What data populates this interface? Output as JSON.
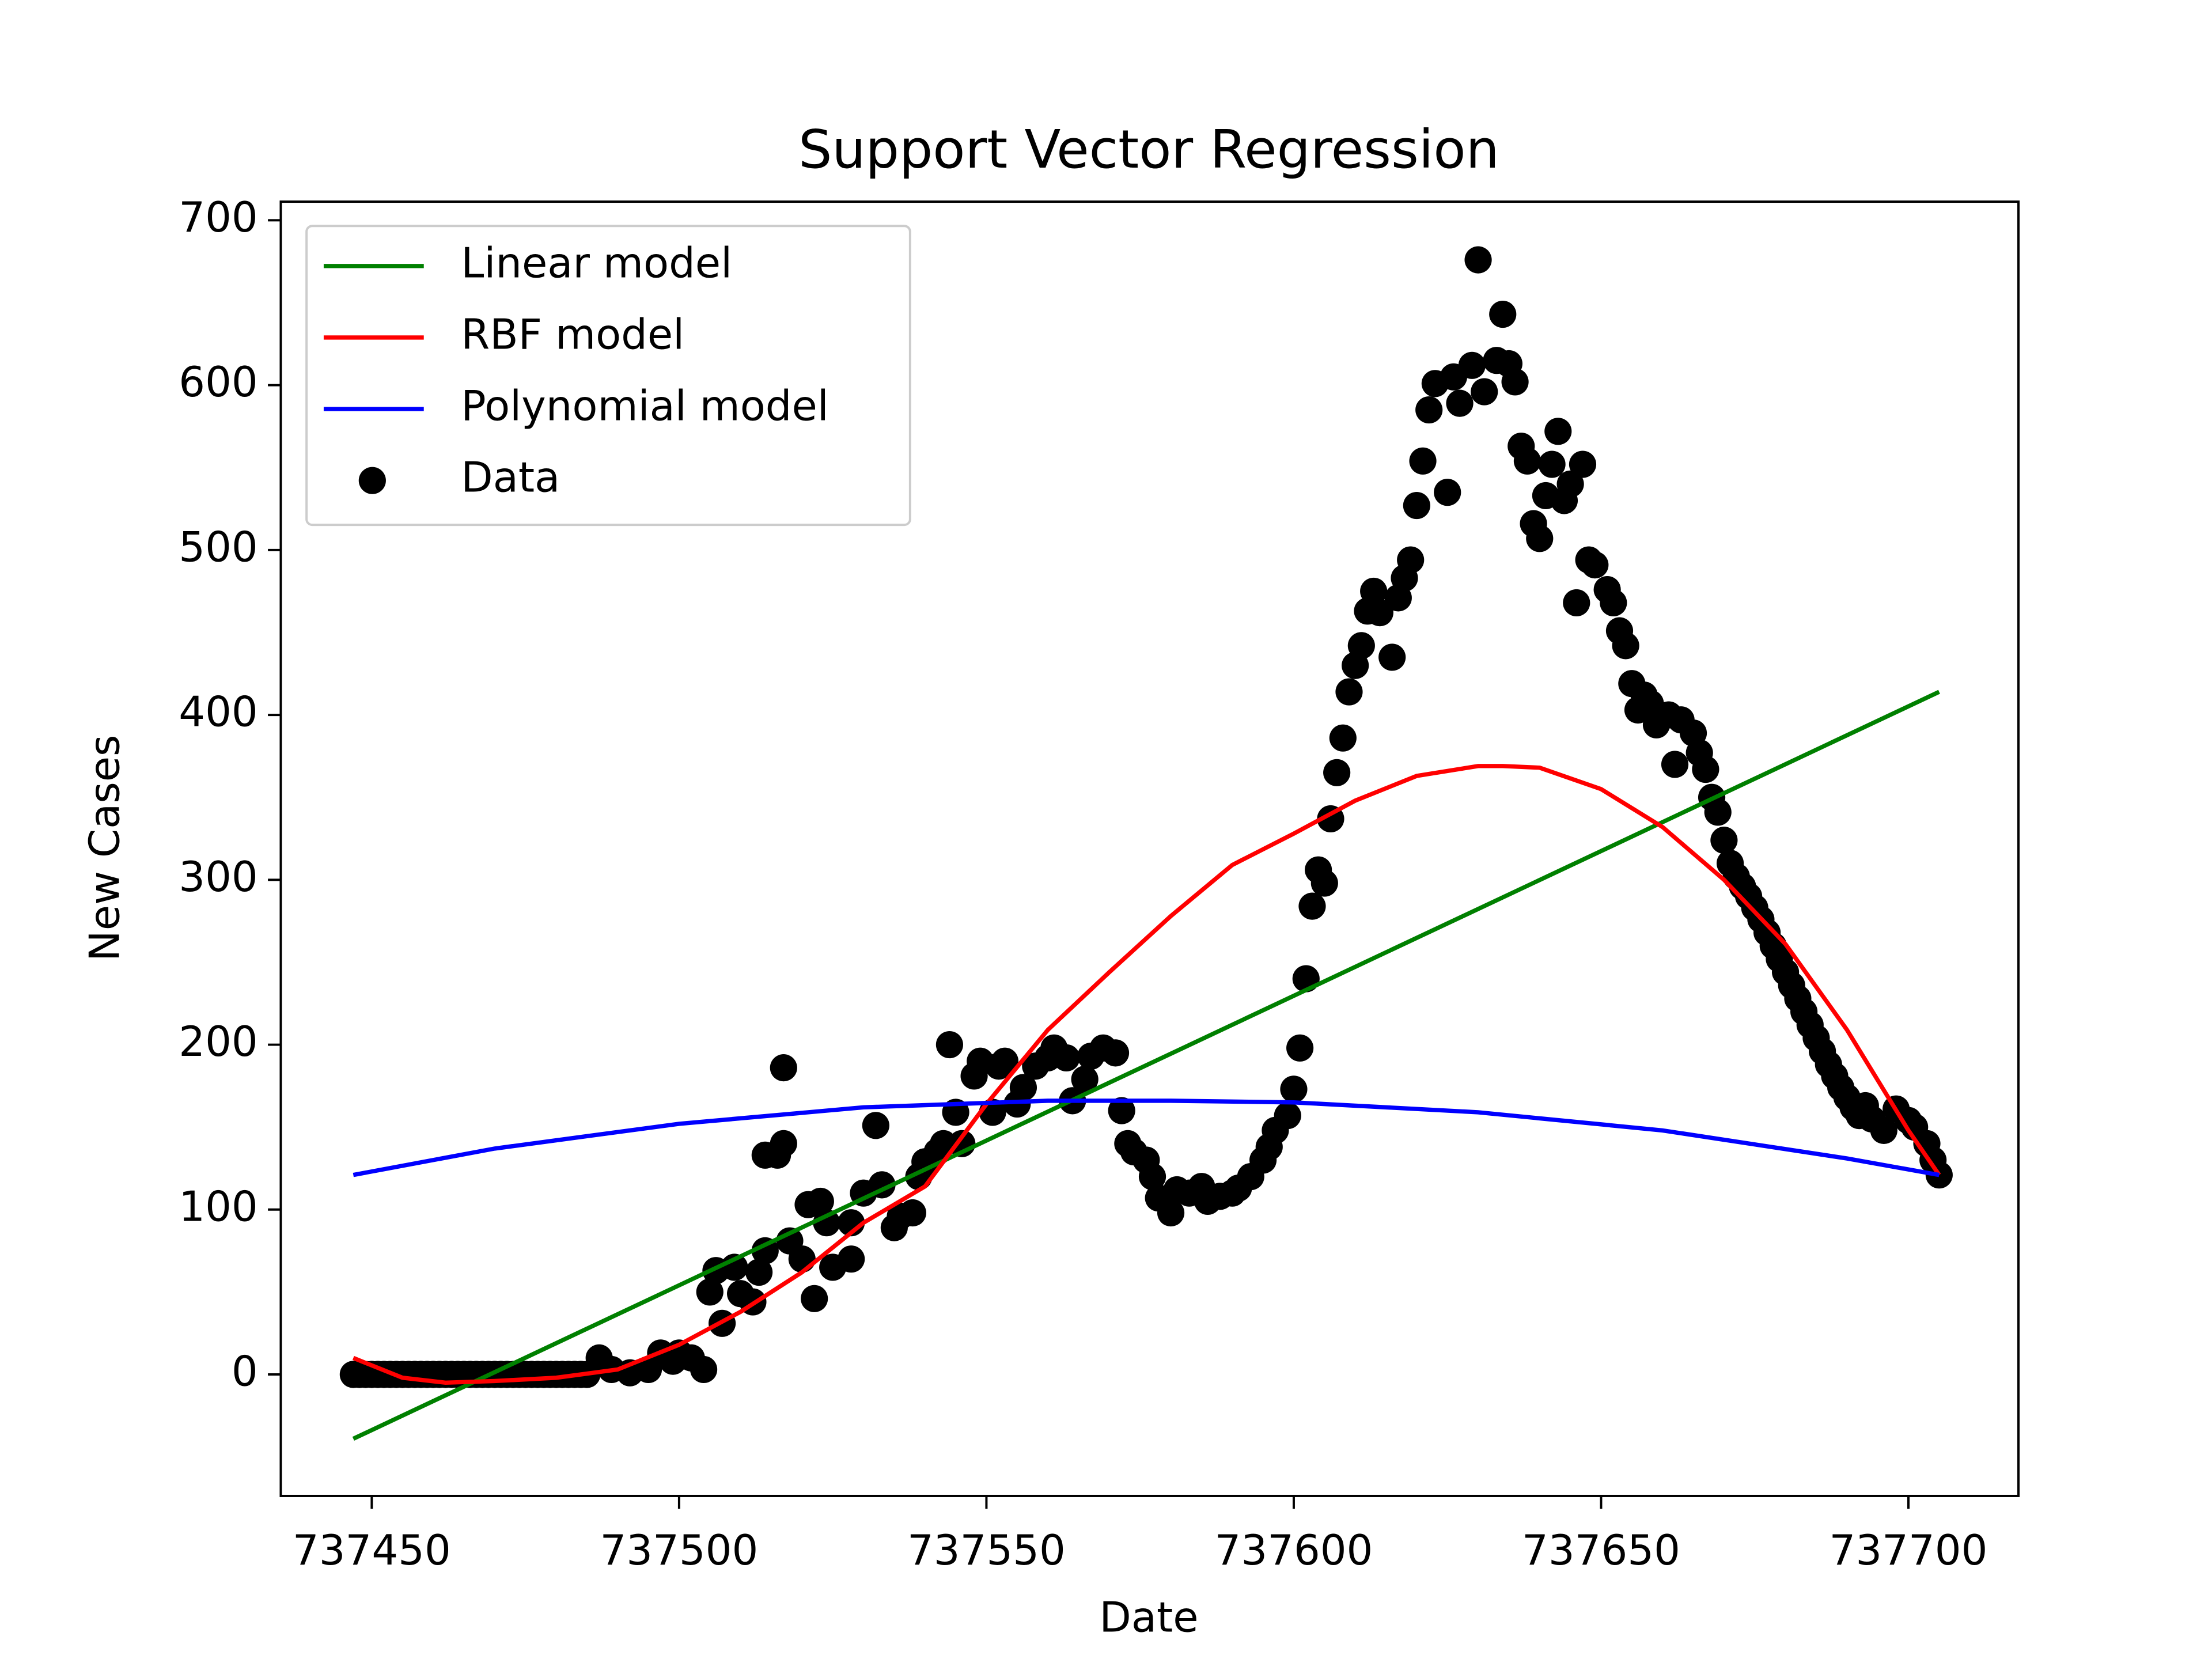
{
  "chart_data": {
    "type": "line",
    "title": "Support Vector Regression",
    "x_label": "Date",
    "y_label": "New Cases",
    "xlim": [
      737435.2,
      737717.9
    ],
    "ylim": [
      -73.7,
      711.3
    ],
    "xticks": [
      737450,
      737500,
      737550,
      737600,
      737650,
      737700
    ],
    "yticks": [
      0,
      100,
      200,
      300,
      400,
      500,
      600,
      700
    ],
    "legend": "upper left",
    "series": [
      {
        "name": "Linear model",
        "type": "line",
        "color": "#008000",
        "x": [
          737447,
          737705
        ],
        "values": [
          -39,
          414
        ]
      },
      {
        "name": "RBF model",
        "type": "line",
        "color": "#ff0000",
        "x": [
          737447,
          737455,
          737462,
          737470,
          737480,
          737490,
          737500,
          737510,
          737520,
          737530,
          737540,
          737550,
          737560,
          737570,
          737580,
          737590,
          737600,
          737610,
          737620,
          737630,
          737634,
          737640,
          737650,
          737660,
          737670,
          737680,
          737690,
          737700,
          737705
        ],
        "values": [
          10,
          -2,
          -5,
          -4,
          -2,
          3,
          18,
          38,
          62,
          92,
          114,
          164,
          209,
          244,
          278,
          309,
          328,
          348,
          363,
          369,
          369,
          368,
          355,
          332,
          300,
          261,
          209,
          148,
          121
        ]
      },
      {
        "name": "Polynomial model",
        "type": "line",
        "color": "#0000ff",
        "x": [
          737447,
          737470,
          737500,
          737530,
          737560,
          737580,
          737600,
          737630,
          737660,
          737690,
          737705
        ],
        "values": [
          121,
          137,
          152,
          162,
          166,
          166,
          165,
          159,
          148,
          131,
          121
        ]
      },
      {
        "name": "Data",
        "type": "scatter",
        "color": "#000000",
        "x": [
          737447,
          737448,
          737449,
          737450,
          737451,
          737452,
          737453,
          737454,
          737455,
          737456,
          737457,
          737458,
          737459,
          737460,
          737461,
          737462,
          737463,
          737464,
          737465,
          737466,
          737467,
          737468,
          737469,
          737470,
          737471,
          737472,
          737473,
          737474,
          737475,
          737476,
          737477,
          737478,
          737479,
          737480,
          737481,
          737482,
          737483,
          737484,
          737485,
          737487,
          737489,
          737492,
          737495,
          737497,
          737499,
          737500,
          737502,
          737504,
          737505,
          737506,
          737507,
          737509,
          737510,
          737512,
          737513,
          737514,
          737514,
          737516,
          737517,
          737517,
          737518,
          737520,
          737521,
          737522,
          737523,
          737524,
          737525,
          737528,
          737528,
          737530,
          737532,
          737533,
          737535,
          737536,
          737538,
          737539,
          737540,
          737542,
          737543,
          737544,
          737545,
          737546,
          737548,
          737549,
          737551,
          737552,
          737553,
          737555,
          737556,
          737558,
          737560,
          737561,
          737563,
          737564,
          737566,
          737567,
          737569,
          737571,
          737572,
          737573,
          737574,
          737576,
          737577,
          737578,
          737580,
          737581,
          737583,
          737585,
          737586,
          737588,
          737590,
          737591,
          737593,
          737595,
          737596,
          737597,
          737599,
          737600,
          737601,
          737602,
          737603,
          737604,
          737605,
          737606,
          737607,
          737608,
          737609,
          737610,
          737611,
          737612,
          737613,
          737614,
          737616,
          737617,
          737618,
          737619,
          737620,
          737621,
          737622,
          737623,
          737625,
          737626,
          737627,
          737629,
          737630,
          737631,
          737633,
          737634,
          737635,
          737636,
          737637,
          737638,
          737639,
          737640,
          737641,
          737642,
          737643,
          737644,
          737645,
          737646,
          737647,
          737648,
          737649,
          737651,
          737652,
          737653,
          737654,
          737655,
          737656,
          737657,
          737658,
          737659,
          737661,
          737662,
          737663,
          737665,
          737666,
          737667,
          737668,
          737669,
          737670,
          737671,
          737672,
          737673,
          737674,
          737675,
          737676,
          737677,
          737678,
          737679,
          737680,
          737681,
          737682,
          737683,
          737684,
          737685,
          737686,
          737687,
          737688,
          737689,
          737690,
          737691,
          737692,
          737693,
          737694,
          737696,
          737698,
          737700,
          737701,
          737703,
          737704,
          737705
        ],
        "values": [
          0,
          0,
          0,
          0,
          0,
          0,
          0,
          0,
          0,
          0,
          0,
          0,
          0,
          0,
          0,
          0,
          0,
          0,
          0,
          0,
          0,
          0,
          0,
          0,
          0,
          0,
          0,
          0,
          0,
          0,
          0,
          0,
          0,
          0,
          0,
          0,
          0,
          0,
          0,
          10,
          3,
          1,
          3,
          13,
          8,
          13,
          10,
          3,
          50,
          63,
          31,
          65,
          49,
          44,
          62,
          75,
          133,
          133,
          140,
          186,
          81,
          70,
          103,
          46,
          105,
          92,
          65,
          70,
          92,
          110,
          151,
          115,
          89,
          96,
          98,
          120,
          129,
          135,
          140,
          200,
          159,
          140,
          181,
          190,
          159,
          187,
          190,
          164,
          174,
          187,
          192,
          198,
          192,
          166,
          179,
          193,
          198,
          195,
          160,
          140,
          135,
          130,
          120,
          107,
          98,
          112,
          110,
          114,
          105,
          108,
          110,
          113,
          120,
          130,
          138,
          148,
          157,
          173,
          198,
          240,
          284,
          306,
          298,
          337,
          365,
          386,
          414,
          430,
          442,
          463,
          475,
          462,
          435,
          471,
          483,
          494,
          527,
          554,
          585,
          601,
          535,
          605,
          589,
          612,
          676,
          596,
          615,
          643,
          613,
          602,
          563,
          554,
          516,
          507,
          533,
          552,
          572,
          530,
          540,
          468,
          552,
          494,
          491,
          476,
          468,
          451,
          442,
          419,
          403,
          412,
          407,
          394,
          400,
          370,
          397,
          389,
          377,
          367,
          350,
          341,
          324,
          310,
          302,
          296,
          290,
          283,
          276,
          268,
          260,
          252,
          244,
          236,
          228,
          220,
          212,
          204,
          196,
          188,
          181,
          174,
          168,
          162,
          157,
          163,
          155,
          148,
          161,
          154,
          150,
          140,
          130,
          121
        ]
      }
    ]
  }
}
